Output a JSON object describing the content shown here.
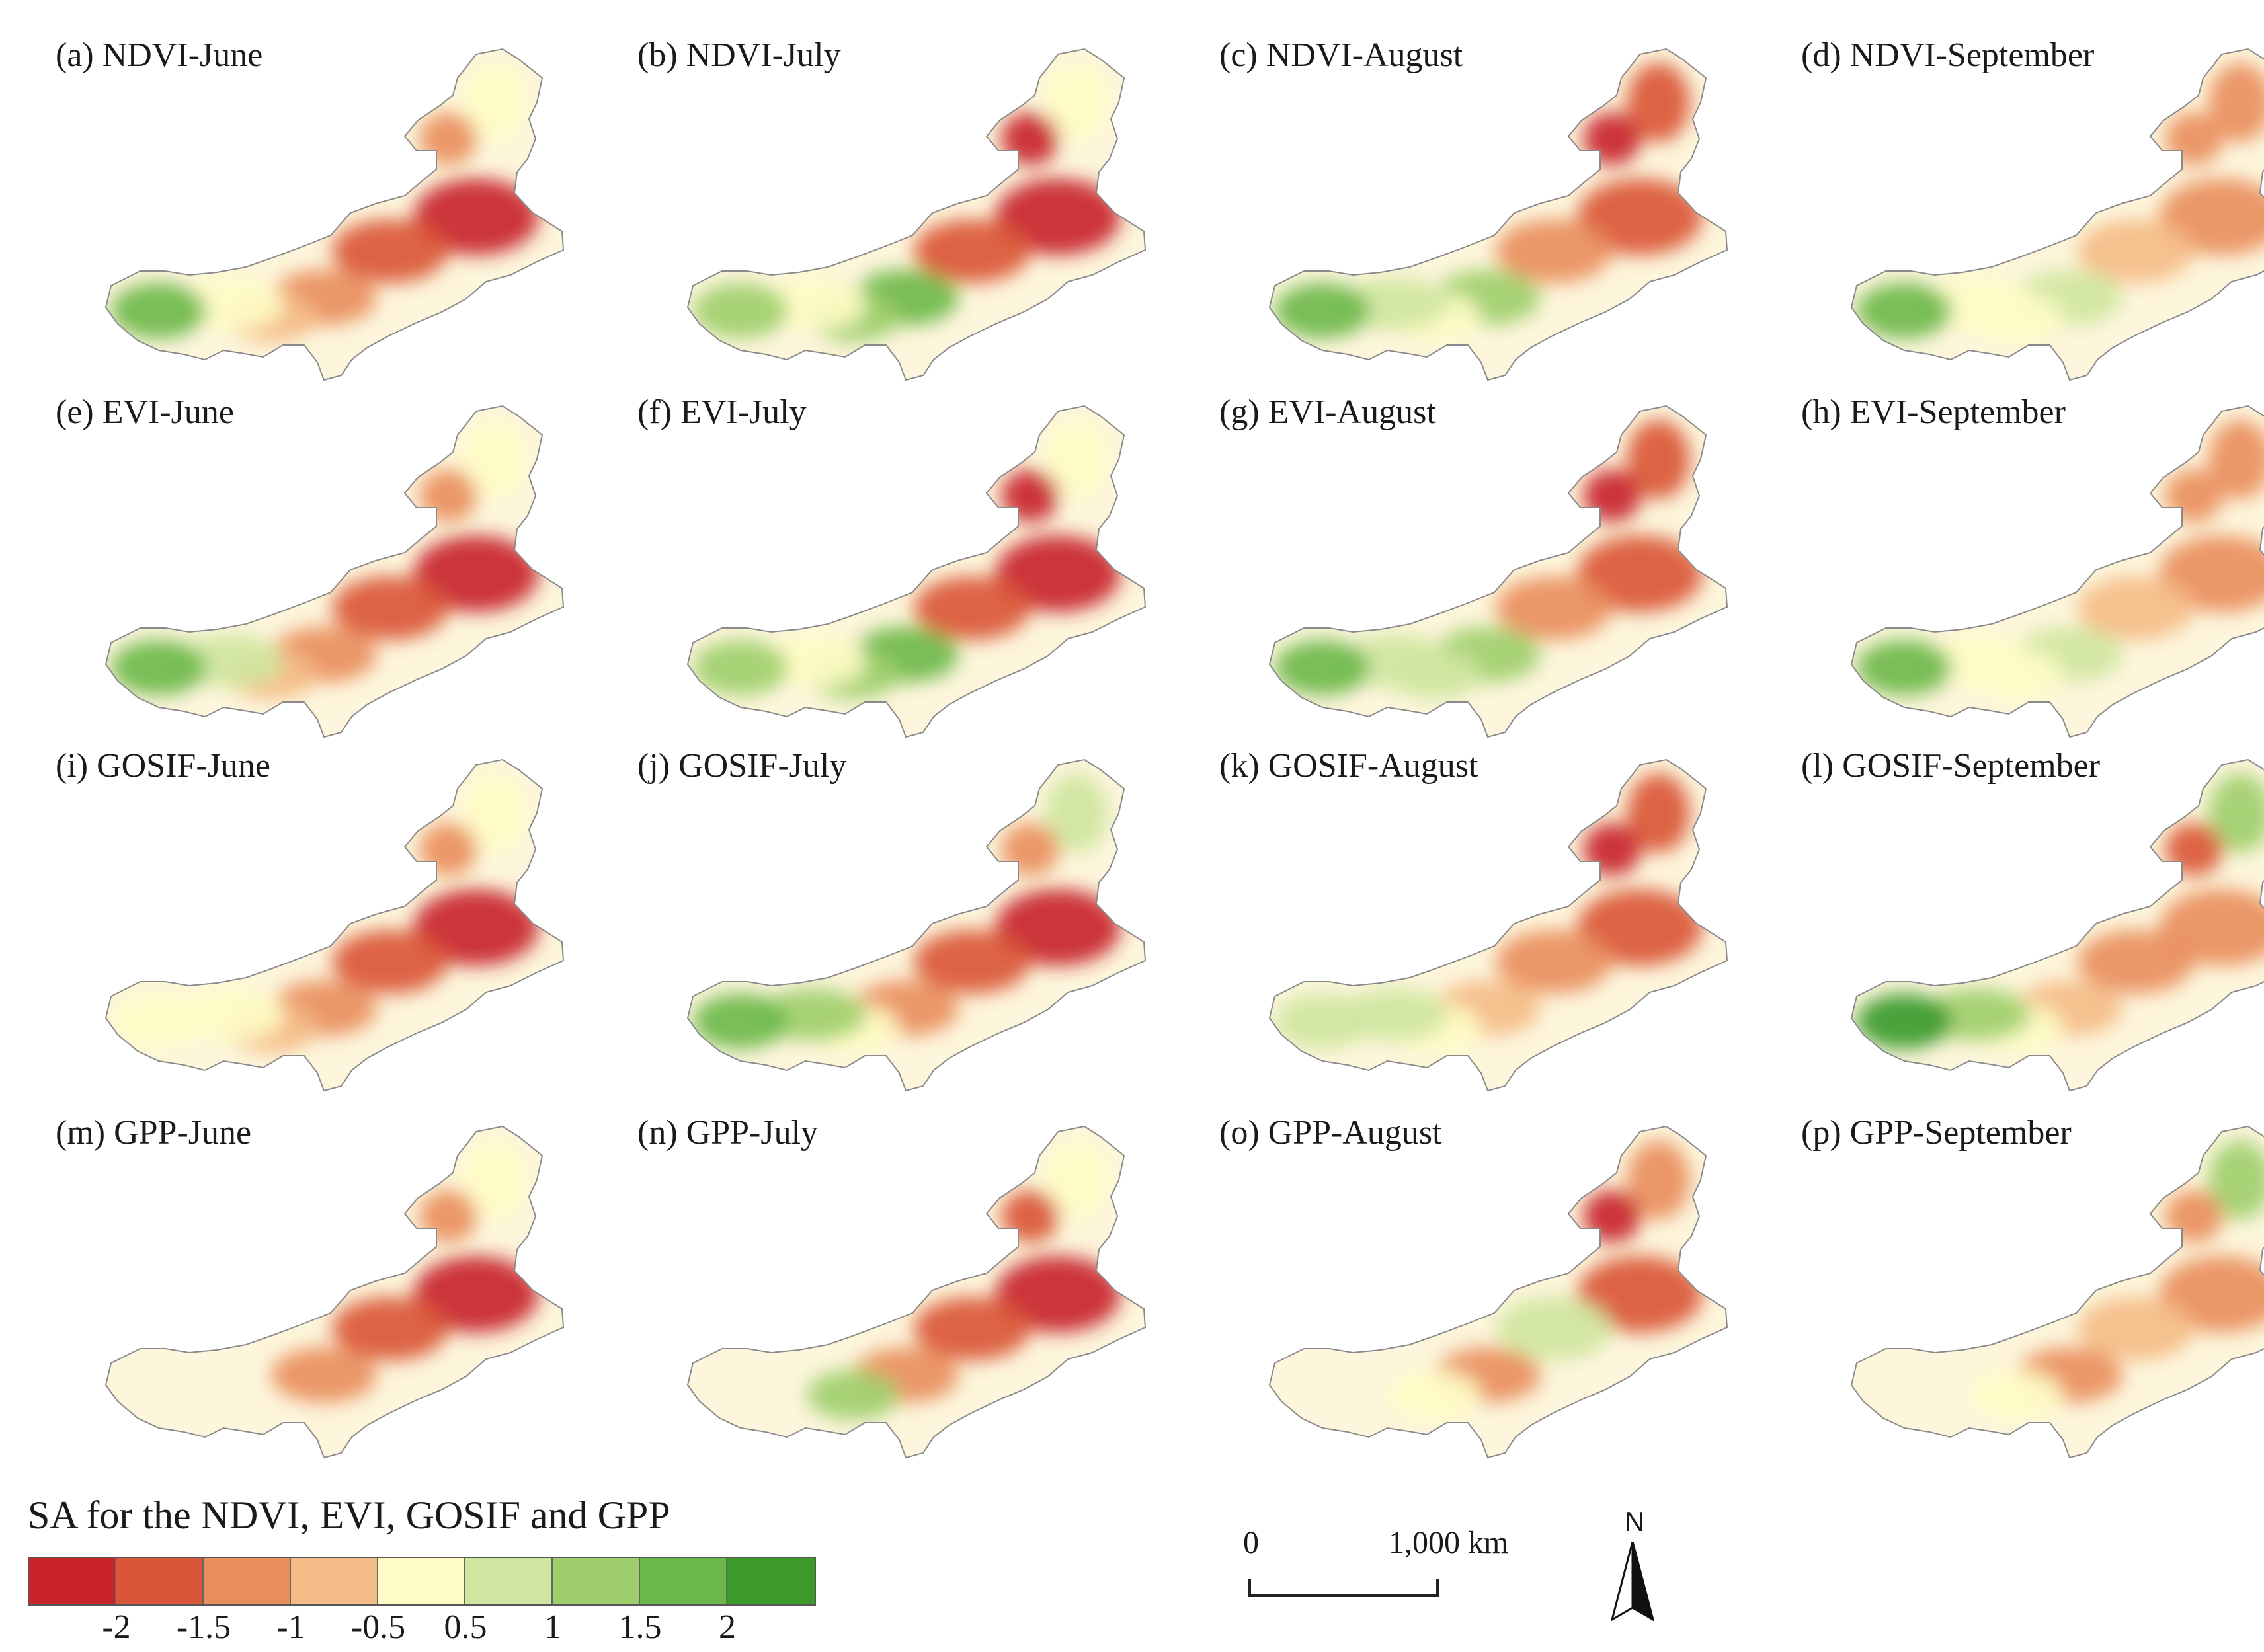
{
  "panels": [
    {
      "label": "(a) NDVI-June"
    },
    {
      "label": "(b) NDVI-July"
    },
    {
      "label": "(c) NDVI-August"
    },
    {
      "label": "(d) NDVI-September"
    },
    {
      "label": "(e) EVI-June"
    },
    {
      "label": "(f) EVI-July"
    },
    {
      "label": "(g) EVI-August"
    },
    {
      "label": "(h) EVI-September"
    },
    {
      "label": "(i) GOSIF-June"
    },
    {
      "label": "(j) GOSIF-July"
    },
    {
      "label": "(k) GOSIF-August"
    },
    {
      "label": "(l) GOSIF-September"
    },
    {
      "label": "(m) GPP-June"
    },
    {
      "label": "(n) GPP-July"
    },
    {
      "label": "(o) GPP-August"
    },
    {
      "label": "(p) GPP-September"
    }
  ],
  "legend": {
    "title": "SA  for the NDVI, EVI, GOSIF and GPP",
    "colors": [
      "#c8242a",
      "#da5638",
      "#e98e5d",
      "#f4bc87",
      "#fefcc4",
      "#cfe6a0",
      "#9fcf6d",
      "#6cb84a",
      "#3b9a2a"
    ],
    "ticks": [
      "-2",
      "-1.5",
      "-1",
      "-0.5",
      "0.5",
      "1",
      "1.5",
      "2"
    ]
  },
  "scale_bar": {
    "start_label": "0",
    "end_label": "1,000 km"
  },
  "north_arrow": {
    "letter": "N"
  }
}
